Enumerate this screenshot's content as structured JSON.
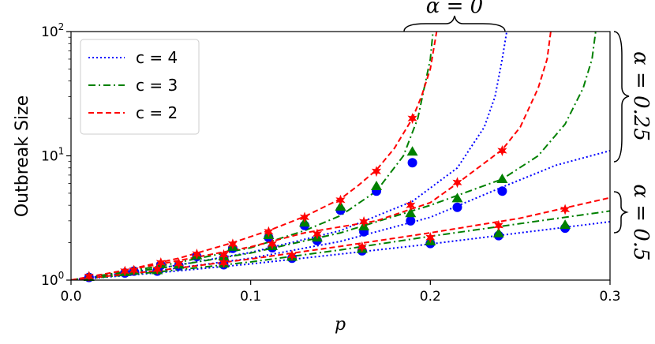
{
  "chart_data": {
    "type": "line",
    "xlabel": "p",
    "ylabel": "Outbreak Size",
    "xlim": [
      0.0,
      0.3
    ],
    "ylim": [
      1,
      100
    ],
    "yscale": "log",
    "grid": false,
    "legend_position": "top-left",
    "x_ticks": [
      "0.0",
      "0.1",
      "0.2",
      "0.3"
    ],
    "y_ticks": [
      {
        "base": "10",
        "exp": "0",
        "value": 1
      },
      {
        "base": "10",
        "exp": "1",
        "value": 10
      },
      {
        "base": "10",
        "exp": "2",
        "value": 100
      }
    ],
    "legend": [
      {
        "label": "c = 4",
        "series": "c4"
      },
      {
        "label": "c = 3",
        "series": "c3"
      },
      {
        "label": "c = 2",
        "series": "c2"
      }
    ],
    "series_style": {
      "c4": {
        "color": "#0000ff",
        "dash": "2,3",
        "marker": "circle"
      },
      "c3": {
        "color": "#008000",
        "dash": "9,4,2,4",
        "marker": "triangle"
      },
      "c2": {
        "color": "#ff0000",
        "dash": "7,4",
        "marker": "star"
      }
    },
    "alpha_labels": [
      {
        "text": "α = 0",
        "alpha": 0
      },
      {
        "text": "α = 0.25",
        "alpha": 0.25
      },
      {
        "text": "α = 0.5",
        "alpha": 0.5
      }
    ],
    "curves": [
      {
        "series": "c4",
        "alpha": 0,
        "points": [
          [
            0,
            1
          ],
          [
            0.05,
            1.25
          ],
          [
            0.1,
            1.67
          ],
          [
            0.15,
            2.5
          ],
          [
            0.19,
            4.3
          ],
          [
            0.215,
            8
          ],
          [
            0.23,
            17
          ],
          [
            0.236,
            30
          ],
          [
            0.24,
            60
          ],
          [
            0.2425,
            100
          ]
        ]
      },
      {
        "series": "c3",
        "alpha": 0,
        "points": [
          [
            0,
            1
          ],
          [
            0.05,
            1.3
          ],
          [
            0.1,
            1.82
          ],
          [
            0.13,
            2.5
          ],
          [
            0.15,
            3.3
          ],
          [
            0.17,
            5.2
          ],
          [
            0.185,
            10
          ],
          [
            0.193,
            20
          ],
          [
            0.2,
            60
          ],
          [
            0.2015,
            100
          ]
        ]
      },
      {
        "series": "c2",
        "alpha": 0,
        "points": [
          [
            0,
            1
          ],
          [
            0.03,
            1.2
          ],
          [
            0.06,
            1.5
          ],
          [
            0.09,
            2
          ],
          [
            0.11,
            2.5
          ],
          [
            0.13,
            3.25
          ],
          [
            0.15,
            4.5
          ],
          [
            0.16,
            5.8
          ],
          [
            0.17,
            7.7
          ],
          [
            0.18,
            11.5
          ],
          [
            0.19,
            20
          ],
          [
            0.195,
            30
          ],
          [
            0.2,
            50
          ],
          [
            0.2035,
            100
          ]
        ]
      },
      {
        "series": "c4",
        "alpha": 0.25,
        "points": [
          [
            0,
            1
          ],
          [
            0.05,
            1.2
          ],
          [
            0.1,
            1.5
          ],
          [
            0.15,
            2.05
          ],
          [
            0.2,
            3.2
          ],
          [
            0.24,
            5.6
          ],
          [
            0.27,
            8.4
          ],
          [
            0.3,
            11
          ]
        ]
      },
      {
        "series": "c3",
        "alpha": 0.25,
        "points": [
          [
            0,
            1
          ],
          [
            0.05,
            1.25
          ],
          [
            0.1,
            1.65
          ],
          [
            0.15,
            2.4
          ],
          [
            0.2,
            4
          ],
          [
            0.24,
            6.5
          ],
          [
            0.26,
            10
          ],
          [
            0.275,
            18
          ],
          [
            0.285,
            35
          ],
          [
            0.29,
            60
          ],
          [
            0.292,
            100
          ]
        ]
      },
      {
        "series": "c2",
        "alpha": 0.25,
        "points": [
          [
            0,
            1
          ],
          [
            0.05,
            1.35
          ],
          [
            0.1,
            1.85
          ],
          [
            0.13,
            2.4
          ],
          [
            0.17,
            3
          ],
          [
            0.2,
            4.2
          ],
          [
            0.215,
            6
          ],
          [
            0.24,
            11.2
          ],
          [
            0.25,
            17
          ],
          [
            0.26,
            35
          ],
          [
            0.265,
            60
          ],
          [
            0.267,
            100
          ]
        ]
      },
      {
        "series": "c4",
        "alpha": 0.5,
        "points": [
          [
            0,
            1
          ],
          [
            0.05,
            1.15
          ],
          [
            0.1,
            1.35
          ],
          [
            0.15,
            1.62
          ],
          [
            0.2,
            1.95
          ],
          [
            0.25,
            2.4
          ],
          [
            0.3,
            2.95
          ]
        ]
      },
      {
        "series": "c3",
        "alpha": 0.5,
        "points": [
          [
            0,
            1
          ],
          [
            0.05,
            1.17
          ],
          [
            0.1,
            1.4
          ],
          [
            0.15,
            1.75
          ],
          [
            0.2,
            2.25
          ],
          [
            0.25,
            2.85
          ],
          [
            0.3,
            3.6
          ]
        ]
      },
      {
        "series": "c2",
        "alpha": 0.5,
        "points": [
          [
            0,
            1
          ],
          [
            0.05,
            1.2
          ],
          [
            0.1,
            1.48
          ],
          [
            0.15,
            1.87
          ],
          [
            0.2,
            2.4
          ],
          [
            0.25,
            3.15
          ],
          [
            0.3,
            4.6
          ]
        ]
      }
    ],
    "markers": [
      {
        "series": "c4",
        "alpha": 0,
        "points": [
          [
            0.01,
            1.05
          ],
          [
            0.035,
            1.18
          ],
          [
            0.05,
            1.32
          ],
          [
            0.07,
            1.55
          ],
          [
            0.09,
            1.8
          ],
          [
            0.11,
            2.2
          ],
          [
            0.13,
            2.75
          ],
          [
            0.15,
            3.65
          ],
          [
            0.17,
            5.2
          ],
          [
            0.19,
            8.8
          ]
        ]
      },
      {
        "series": "c3",
        "alpha": 0,
        "points": [
          [
            0.01,
            1.06
          ],
          [
            0.035,
            1.19
          ],
          [
            0.05,
            1.34
          ],
          [
            0.07,
            1.58
          ],
          [
            0.09,
            1.85
          ],
          [
            0.11,
            2.3
          ],
          [
            0.13,
            2.9
          ],
          [
            0.15,
            3.9
          ],
          [
            0.17,
            5.7
          ],
          [
            0.19,
            10.8
          ]
        ]
      },
      {
        "series": "c2",
        "alpha": 0,
        "points": [
          [
            0.01,
            1.07
          ],
          [
            0.035,
            1.2
          ],
          [
            0.05,
            1.38
          ],
          [
            0.07,
            1.62
          ],
          [
            0.09,
            1.95
          ],
          [
            0.11,
            2.45
          ],
          [
            0.13,
            3.2
          ],
          [
            0.15,
            4.4
          ],
          [
            0.17,
            7.5
          ],
          [
            0.19,
            20
          ]
        ]
      },
      {
        "series": "c4",
        "alpha": 0.25,
        "points": [
          [
            0.03,
            1.14
          ],
          [
            0.06,
            1.3
          ],
          [
            0.085,
            1.5
          ],
          [
            0.112,
            1.82
          ],
          [
            0.137,
            2.08
          ],
          [
            0.163,
            2.45
          ],
          [
            0.189,
            3
          ],
          [
            0.215,
            3.85
          ],
          [
            0.24,
            5.2
          ]
        ]
      },
      {
        "series": "c3",
        "alpha": 0.25,
        "points": [
          [
            0.03,
            1.16
          ],
          [
            0.06,
            1.33
          ],
          [
            0.085,
            1.55
          ],
          [
            0.112,
            1.88
          ],
          [
            0.137,
            2.2
          ],
          [
            0.163,
            2.7
          ],
          [
            0.189,
            3.45
          ],
          [
            0.215,
            4.55
          ],
          [
            0.24,
            6.5
          ]
        ]
      },
      {
        "series": "c2",
        "alpha": 0.25,
        "points": [
          [
            0.03,
            1.18
          ],
          [
            0.06,
            1.36
          ],
          [
            0.085,
            1.6
          ],
          [
            0.112,
            1.95
          ],
          [
            0.137,
            2.35
          ],
          [
            0.163,
            2.95
          ],
          [
            0.189,
            4
          ],
          [
            0.215,
            6.1
          ],
          [
            0.24,
            11
          ]
        ]
      },
      {
        "series": "c4",
        "alpha": 0.5,
        "points": [
          [
            0.048,
            1.18
          ],
          [
            0.085,
            1.33
          ],
          [
            0.123,
            1.5
          ],
          [
            0.162,
            1.72
          ],
          [
            0.2,
            1.97
          ],
          [
            0.238,
            2.28
          ],
          [
            0.275,
            2.62
          ]
        ]
      },
      {
        "series": "c3",
        "alpha": 0.5,
        "points": [
          [
            0.048,
            1.2
          ],
          [
            0.085,
            1.36
          ],
          [
            0.123,
            1.54
          ],
          [
            0.162,
            1.78
          ],
          [
            0.2,
            2.05
          ],
          [
            0.238,
            2.38
          ],
          [
            0.275,
            2.78
          ]
        ]
      },
      {
        "series": "c2",
        "alpha": 0.5,
        "points": [
          [
            0.048,
            1.22
          ],
          [
            0.085,
            1.38
          ],
          [
            0.123,
            1.58
          ],
          [
            0.162,
            1.85
          ],
          [
            0.2,
            2.2
          ],
          [
            0.238,
            2.75
          ],
          [
            0.275,
            3.7
          ]
        ]
      }
    ]
  }
}
